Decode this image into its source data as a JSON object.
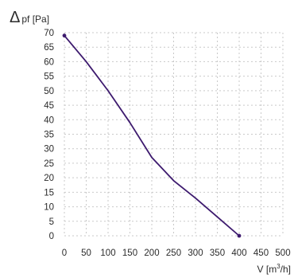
{
  "chart_data": {
    "type": "line",
    "title": "",
    "ylabel_symbol": "Δ",
    "ylabel_text": "pf [Pa]",
    "xlabel_prefix": "V [m",
    "xlabel_sup": "3",
    "xlabel_suffix": "/h]",
    "xlim": [
      0,
      500
    ],
    "ylim": [
      0,
      70
    ],
    "xticks": [
      0,
      50,
      100,
      150,
      200,
      250,
      300,
      350,
      400,
      450,
      500
    ],
    "yticks": [
      0,
      5,
      10,
      15,
      20,
      25,
      30,
      35,
      40,
      45,
      50,
      55,
      60,
      65,
      70
    ],
    "grid": true,
    "series": [
      {
        "color": "#3d1a6e",
        "x": [
          0,
          50,
          100,
          150,
          200,
          250,
          300,
          350,
          400
        ],
        "y": [
          69,
          60,
          50,
          39,
          27,
          19,
          13,
          6.5,
          0
        ],
        "markers_at": [
          0,
          400
        ]
      }
    ]
  }
}
